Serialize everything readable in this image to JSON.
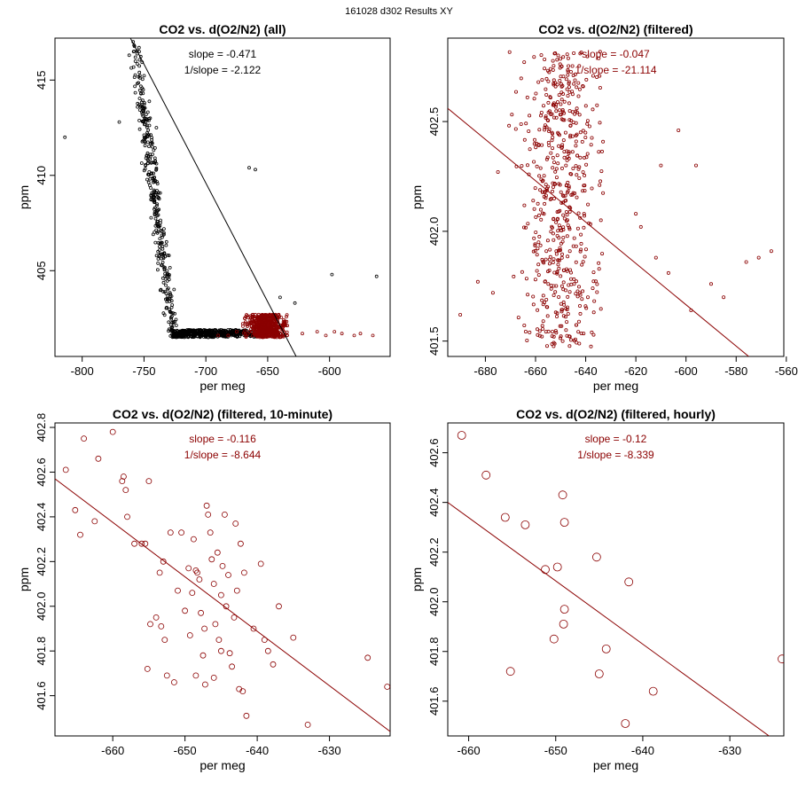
{
  "page_title": "161028   d302   Results XY",
  "colors": {
    "all_points": "#000000",
    "filtered": "#8b0000",
    "frame": "#000000"
  },
  "chart_data": [
    {
      "type": "scatter",
      "title": "CO2 vs. d(O2/N2) (all)",
      "xlabel": "per meg",
      "ylabel": "ppm",
      "xlim": [
        -822,
        -551
      ],
      "ylim": [
        400.5,
        417.2
      ],
      "xticks": [
        -800,
        -750,
        -700,
        -650,
        -600
      ],
      "xtick_labels": [
        "-800",
        "-750",
        "-700",
        "-650",
        "-600"
      ],
      "yticks": [
        405,
        410,
        415
      ],
      "ytick_labels": [
        "405",
        "410",
        "415"
      ],
      "annotations": [
        "slope = -0.471",
        "1/slope = -2.122"
      ],
      "annotation_color": "#000000",
      "line": {
        "slope": -0.471,
        "points": [
          [
            -761,
            417.2
          ],
          [
            -627,
            400.5
          ]
        ],
        "color": "#000000"
      },
      "series": [
        {
          "name": "all",
          "color": "#000000",
          "marker_r": 1.5,
          "generator": {
            "count": 850,
            "x_start": -755,
            "x_end": -637,
            "slope": -0.471,
            "y_at_start": 415.3,
            "spread": 1.0,
            "x_jitter": 6,
            "y_min": 401.5,
            "seed": 7
          },
          "points": [
            [
              -814,
              412.0
            ],
            [
              -770,
              412.8
            ],
            [
              -762,
              416.3
            ],
            [
              -758,
              416.5
            ],
            [
              -757,
              416.2
            ],
            [
              -754,
              416.7
            ],
            [
              -745,
              413.0
            ],
            [
              -740,
              412.5
            ],
            [
              -660,
              410.3
            ],
            [
              -665,
              410.4
            ],
            [
              -598,
              404.8
            ],
            [
              -562,
              404.7
            ],
            [
              -640,
              403.6
            ],
            [
              -628,
              403.3
            ]
          ]
        },
        {
          "name": "filtered",
          "color": "#8b0000",
          "marker_r": 1.5,
          "generator": {
            "count": 560,
            "x_min": -672,
            "x_max": -634,
            "y_min": 401.5,
            "y_max": 402.7,
            "x_center": -650,
            "x_sd": 8,
            "seed": 11
          },
          "points": [
            [
              -690,
              401.6
            ],
            [
              -682,
              401.6
            ],
            [
              -675,
              401.8
            ],
            [
              -622,
              401.7
            ],
            [
              -610,
              401.8
            ],
            [
              -603,
              401.6
            ],
            [
              -596,
              401.8
            ],
            [
              -590,
              401.7
            ],
            [
              -580,
              401.6
            ],
            [
              -575,
              401.7
            ],
            [
              -565,
              401.6
            ]
          ]
        }
      ]
    },
    {
      "type": "scatter",
      "title": "CO2 vs. d(O2/N2) (filtered)",
      "xlabel": "per meg",
      "ylabel": "ppm",
      "xlim": [
        -695,
        -561
      ],
      "ylim": [
        401.43,
        402.88
      ],
      "xticks": [
        -680,
        -660,
        -640,
        -620,
        -600,
        -580,
        -560
      ],
      "xtick_labels": [
        "-680",
        "-660",
        "-640",
        "-620",
        "-600",
        "-580",
        "-560"
      ],
      "yticks": [
        401.5,
        402.0,
        402.5
      ],
      "ytick_labels": [
        "401.5",
        "402.0",
        "402.5"
      ],
      "annotations": [
        "slope = -0.047",
        "1/slope = -21.114"
      ],
      "annotation_color": "#8b0000",
      "line": {
        "slope": -0.047,
        "points": [
          [
            -695,
            402.56
          ],
          [
            -575,
            401.43
          ]
        ],
        "color": "#8b0000"
      },
      "series": [
        {
          "name": "filtered",
          "color": "#8b0000",
          "marker_r": 1.6,
          "generator": {
            "count": 560,
            "x_min": -672,
            "x_max": -633,
            "y_min": 401.47,
            "y_max": 402.82,
            "x_center": -650,
            "x_sd": 7,
            "seed": 23
          },
          "points": [
            [
              -690,
              401.62
            ],
            [
              -683,
              401.77
            ],
            [
              -677,
              401.72
            ],
            [
              -675,
              402.27
            ],
            [
              -620,
              402.08
            ],
            [
              -618,
              402.02
            ],
            [
              -612,
              401.88
            ],
            [
              -610,
              402.3
            ],
            [
              -607,
              401.81
            ],
            [
              -603,
              402.46
            ],
            [
              -598,
              401.64
            ],
            [
              -596,
              402.3
            ],
            [
              -590,
              401.76
            ],
            [
              -585,
              401.7
            ],
            [
              -576,
              401.86
            ],
            [
              -571,
              401.88
            ],
            [
              -566,
              401.91
            ]
          ]
        }
      ]
    },
    {
      "type": "scatter",
      "title": "CO2 vs. d(O2/N2) (filtered, 10-minute)",
      "xlabel": "per meg",
      "ylabel": "ppm",
      "xlim": [
        -668,
        -621.6
      ],
      "ylim": [
        401.42,
        402.82
      ],
      "xticks": [
        -660,
        -650,
        -640,
        -630
      ],
      "xtick_labels": [
        "-660",
        "-650",
        "-640",
        "-630"
      ],
      "yticks": [
        401.6,
        401.8,
        402.0,
        402.2,
        402.4,
        402.6,
        402.8
      ],
      "ytick_labels": [
        "401.6",
        "401.8",
        "402.0",
        "402.2",
        "402.4",
        "402.6",
        "402.8"
      ],
      "annotations": [
        "slope = -0.116",
        "1/slope = -8.644"
      ],
      "annotation_color": "#8b0000",
      "line": {
        "slope": -0.116,
        "points": [
          [
            -668,
            402.57
          ],
          [
            -621.6,
            401.44
          ]
        ],
        "color": "#8b0000"
      },
      "series": [
        {
          "name": "10-minute",
          "color": "#8b0000",
          "marker_r": 3,
          "points": [
            [
              -666.5,
              402.61
            ],
            [
              -665.2,
              402.43
            ],
            [
              -664.5,
              402.32
            ],
            [
              -664.0,
              402.75
            ],
            [
              -662.5,
              402.38
            ],
            [
              -662.0,
              402.66
            ],
            [
              -660.0,
              402.78
            ],
            [
              -658.7,
              402.56
            ],
            [
              -658.5,
              402.58
            ],
            [
              -658.2,
              402.52
            ],
            [
              -658.0,
              402.4
            ],
            [
              -657.0,
              402.28
            ],
            [
              -656.0,
              402.28
            ],
            [
              -655.5,
              402.28
            ],
            [
              -655.0,
              402.56
            ],
            [
              -655.2,
              401.72
            ],
            [
              -654.0,
              401.95
            ],
            [
              -653.5,
              402.15
            ],
            [
              -653.3,
              401.91
            ],
            [
              -653.0,
              402.2
            ],
            [
              -652.8,
              401.85
            ],
            [
              -652.0,
              402.33
            ],
            [
              -651.5,
              401.66
            ],
            [
              -651.0,
              402.07
            ],
            [
              -650.5,
              402.33
            ],
            [
              -650.0,
              401.98
            ],
            [
              -649.5,
              402.17
            ],
            [
              -649.3,
              401.87
            ],
            [
              -649.0,
              402.06
            ],
            [
              -648.8,
              402.3
            ],
            [
              -648.5,
              402.16
            ],
            [
              -648.3,
              402.15
            ],
            [
              -648.0,
              402.12
            ],
            [
              -647.8,
              401.97
            ],
            [
              -647.5,
              401.78
            ],
            [
              -647.3,
              401.9
            ],
            [
              -647.0,
              402.45
            ],
            [
              -646.8,
              402.41
            ],
            [
              -646.5,
              402.33
            ],
            [
              -646.3,
              402.21
            ],
            [
              -646.0,
              402.1
            ],
            [
              -645.8,
              401.92
            ],
            [
              -645.5,
              402.24
            ],
            [
              -645.3,
              401.85
            ],
            [
              -645.0,
              401.8
            ],
            [
              -644.8,
              402.18
            ],
            [
              -644.5,
              402.41
            ],
            [
              -644.3,
              402.0
            ],
            [
              -644.0,
              402.14
            ],
            [
              -643.8,
              401.79
            ],
            [
              -643.5,
              401.73
            ],
            [
              -643.2,
              401.95
            ],
            [
              -643.0,
              402.37
            ],
            [
              -642.8,
              402.07
            ],
            [
              -642.5,
              401.63
            ],
            [
              -642.3,
              402.28
            ],
            [
              -642.0,
              401.62
            ],
            [
              -641.8,
              402.15
            ],
            [
              -641.5,
              401.51
            ],
            [
              -640.5,
              401.9
            ],
            [
              -639.5,
              402.19
            ],
            [
              -639.0,
              401.85
            ],
            [
              -638.5,
              401.8
            ],
            [
              -637.8,
              401.74
            ],
            [
              -637.0,
              402.0
            ],
            [
              -635.0,
              401.86
            ],
            [
              -633.0,
              401.47
            ],
            [
              -624.7,
              401.77
            ],
            [
              -622.0,
              401.64
            ],
            [
              -648.5,
              401.69
            ],
            [
              -647.2,
              401.65
            ],
            [
              -646.0,
              401.68
            ],
            [
              -645.0,
              402.05
            ],
            [
              -652.5,
              401.69
            ],
            [
              -654.8,
              401.92
            ]
          ]
        }
      ]
    },
    {
      "type": "scatter",
      "title": "CO2 vs. d(O2/N2) (filtered, hourly)",
      "xlabel": "per meg",
      "ylabel": "ppm",
      "xlim": [
        -662.4,
        -623.8
      ],
      "ylim": [
        401.46,
        402.72
      ],
      "xticks": [
        -660,
        -650,
        -640,
        -630
      ],
      "xtick_labels": [
        "-660",
        "-650",
        "-640",
        "-630"
      ],
      "yticks": [
        401.6,
        401.8,
        402.0,
        402.2,
        402.4,
        402.6
      ],
      "ytick_labels": [
        "401.6",
        "401.8",
        "402.0",
        "402.2",
        "402.4",
        "402.6"
      ],
      "annotations": [
        "slope = -0.12",
        "1/slope = -8.339"
      ],
      "annotation_color": "#8b0000",
      "line": {
        "slope": -0.12,
        "points": [
          [
            -662.4,
            402.4
          ],
          [
            -625.5,
            401.46
          ]
        ],
        "color": "#8b0000"
      },
      "series": [
        {
          "name": "hourly",
          "color": "#8b0000",
          "marker_r": 4.5,
          "points": [
            [
              -660.8,
              402.67
            ],
            [
              -658.0,
              402.51
            ],
            [
              -655.8,
              402.34
            ],
            [
              -655.2,
              401.72
            ],
            [
              -653.5,
              402.31
            ],
            [
              -651.2,
              402.13
            ],
            [
              -650.2,
              401.85
            ],
            [
              -649.8,
              402.14
            ],
            [
              -649.2,
              402.43
            ],
            [
              -649.0,
              402.32
            ],
            [
              -649.0,
              401.97
            ],
            [
              -649.1,
              401.91
            ],
            [
              -645.3,
              402.18
            ],
            [
              -645.0,
              401.71
            ],
            [
              -644.2,
              401.81
            ],
            [
              -641.6,
              402.08
            ],
            [
              -642.0,
              401.51
            ],
            [
              -638.8,
              401.64
            ],
            [
              -624.0,
              401.77
            ]
          ]
        }
      ]
    }
  ]
}
